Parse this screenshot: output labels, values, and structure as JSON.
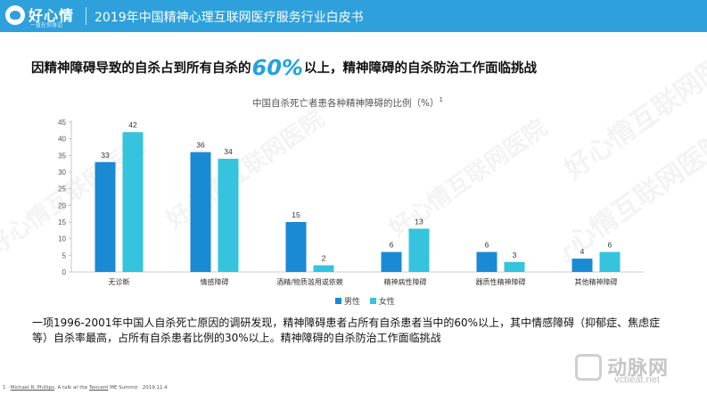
{
  "header": {
    "logo_text": "好心情",
    "logo_slogan": "一直在你身边",
    "title": "2019年中国精神心理互联网医疗服务行业白皮书"
  },
  "headline": {
    "prefix": "因精神障碍导致的自杀占到所有自杀的",
    "highlight": "60%",
    "suffix": "以上，精神障碍的自杀防治工作面临挑战"
  },
  "colors": {
    "header_bg": "#2ea1dc",
    "male": "#1a8ad4",
    "female": "#35c3dd",
    "highlight": "#1fa3dc"
  },
  "chart_data": {
    "type": "bar",
    "title": "中国自杀死亡者患各种精神障碍的比例（%）",
    "title_superscript": "1",
    "categories": [
      "无诊断",
      "情感障碍",
      "酒精/物质滥用或依赖",
      "精神病性障碍",
      "器质性精神障碍",
      "其他精神障碍"
    ],
    "series": [
      {
        "name": "男性",
        "color": "#1a8ad4",
        "values": [
          33,
          36,
          15,
          6,
          6,
          4
        ]
      },
      {
        "name": "女性",
        "color": "#35c3dd",
        "values": [
          42,
          34,
          2,
          13,
          3,
          6
        ]
      }
    ],
    "yticks": [
      0,
      5,
      10,
      15,
      20,
      25,
      30,
      35,
      40,
      45
    ],
    "ylim": [
      0,
      45
    ],
    "legend_position": "bottom",
    "grid": false
  },
  "legend": {
    "male": "男性",
    "female": "女性"
  },
  "summary": "一项1996-2001年中国人自杀死亡原因的调研发现，精神障碍患者占所有自杀患者当中的60%以上，其中情感障碍（抑郁症、焦虑症等）自杀率最高，占所有自杀患者比例的30%以上。精神障碍的自杀防治工作面临挑战",
  "footnote": {
    "index": "1",
    "author": "Michael R. Phillips",
    "middle": ", A talk at the ",
    "org": "Tencent",
    "rest": " ME Summit",
    "date": "2019.11.4"
  },
  "watermark": {
    "text": "好心情互联网医院"
  },
  "brand": {
    "name": "动脉网",
    "url": "vcbeat.net"
  }
}
